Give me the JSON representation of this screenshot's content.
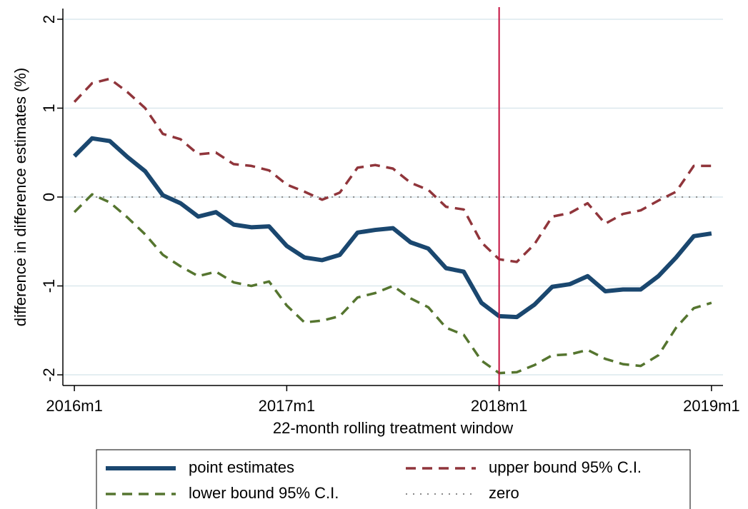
{
  "chart_data": {
    "type": "line",
    "x_label": "22-month rolling treatment window",
    "y_label": "difference in difference estimates (%)",
    "x": [
      672,
      673,
      674,
      675,
      676,
      677,
      678,
      679,
      680,
      681,
      682,
      683,
      684,
      685,
      686,
      687,
      688,
      689,
      690,
      691,
      692,
      693,
      694,
      695,
      696,
      697,
      698,
      699,
      700,
      701,
      702,
      703,
      704,
      705,
      706,
      707,
      708
    ],
    "xlim": [
      671.35,
      708.65
    ],
    "xticks": [
      {
        "value": 672,
        "label": "2016m1"
      },
      {
        "value": 684,
        "label": "2017m1"
      },
      {
        "value": 696,
        "label": "2018m1"
      },
      {
        "value": 708,
        "label": "2019m1"
      }
    ],
    "ylim": [
      -2.12,
      2.12
    ],
    "yticks": [
      -2,
      -1,
      0,
      1,
      2
    ],
    "grid": true,
    "xline": 696,
    "xline_color": "#c4103f",
    "series": [
      {
        "name": "point estimates",
        "color": "#1a476f",
        "dash": "solid",
        "values": [
          0.46,
          0.66,
          0.63,
          0.45,
          0.29,
          0.02,
          -0.07,
          -0.22,
          -0.17,
          -0.31,
          -0.34,
          -0.33,
          -0.55,
          -0.68,
          -0.71,
          -0.65,
          -0.4,
          -0.37,
          -0.35,
          -0.51,
          -0.58,
          -0.8,
          -0.84,
          -1.19,
          -1.34,
          -1.35,
          -1.21,
          -1.01,
          -0.98,
          -0.89,
          -1.06,
          -1.04,
          -1.04,
          -0.89,
          -0.68,
          -0.44,
          -0.41
        ]
      },
      {
        "name": "upper bound 95% C.I.",
        "color": "#90353b",
        "dash": "dash",
        "values": [
          1.07,
          1.28,
          1.33,
          1.18,
          1.0,
          0.71,
          0.65,
          0.48,
          0.5,
          0.37,
          0.35,
          0.3,
          0.14,
          0.06,
          -0.03,
          0.05,
          0.33,
          0.36,
          0.32,
          0.16,
          0.08,
          -0.11,
          -0.14,
          -0.51,
          -0.7,
          -0.73,
          -0.53,
          -0.22,
          -0.18,
          -0.07,
          -0.3,
          -0.19,
          -0.15,
          -0.04,
          0.06,
          0.35,
          0.35
        ]
      },
      {
        "name": "lower bound 95% C.I.",
        "color": "#55752f",
        "dash": "dash",
        "values": [
          -0.17,
          0.03,
          -0.06,
          -0.23,
          -0.42,
          -0.65,
          -0.78,
          -0.89,
          -0.84,
          -0.96,
          -1.0,
          -0.95,
          -1.22,
          -1.41,
          -1.39,
          -1.34,
          -1.13,
          -1.08,
          -1.0,
          -1.14,
          -1.24,
          -1.47,
          -1.55,
          -1.84,
          -1.98,
          -1.97,
          -1.89,
          -1.78,
          -1.77,
          -1.72,
          -1.82,
          -1.88,
          -1.9,
          -1.78,
          -1.47,
          -1.25,
          -1.19
        ]
      },
      {
        "name": "zero",
        "color": "#8a8a8a",
        "dash": "dot",
        "values": [
          0,
          0,
          0,
          0,
          0,
          0,
          0,
          0,
          0,
          0,
          0,
          0,
          0,
          0,
          0,
          0,
          0,
          0,
          0,
          0,
          0,
          0,
          0,
          0,
          0,
          0,
          0,
          0,
          0,
          0,
          0,
          0,
          0,
          0,
          0,
          0,
          0
        ]
      }
    ]
  }
}
